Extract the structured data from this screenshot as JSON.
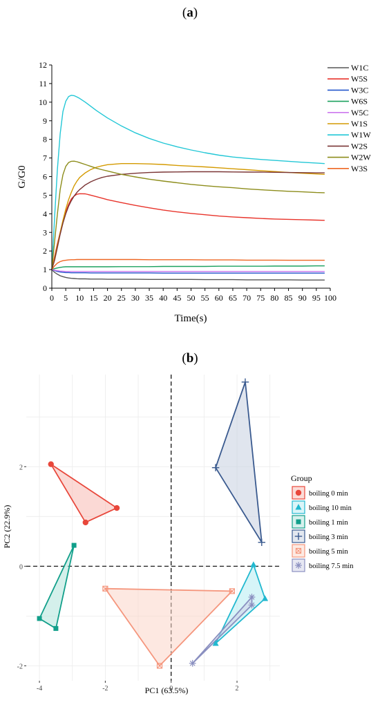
{
  "chart_data": [
    {
      "panel_label_open": "(",
      "panel_label": "a",
      "panel_label_close": ")",
      "type": "line",
      "xlabel": "Time(s)",
      "ylabel": "G/G0",
      "xlim": [
        0,
        100
      ],
      "ylim": [
        0,
        12
      ],
      "x_ticks": [
        0,
        5,
        10,
        15,
        20,
        25,
        30,
        35,
        40,
        45,
        50,
        55,
        60,
        65,
        70,
        75,
        80,
        85,
        90,
        95,
        100
      ],
      "y_ticks": [
        0,
        1,
        2,
        3,
        4,
        5,
        6,
        7,
        8,
        9,
        10,
        11,
        12
      ],
      "grid": false,
      "legend_position": "right",
      "x": [
        0,
        1,
        2,
        3,
        4,
        5,
        6,
        7,
        8,
        9,
        10,
        12,
        14,
        16,
        18,
        20,
        25,
        30,
        35,
        40,
        45,
        50,
        55,
        60,
        65,
        70,
        75,
        80,
        85,
        90,
        95,
        98
      ],
      "series": [
        {
          "name": "W1C",
          "color": "#555555",
          "values": [
            1.0,
            0.85,
            0.75,
            0.67,
            0.62,
            0.58,
            0.55,
            0.53,
            0.52,
            0.51,
            0.5,
            0.5,
            0.49,
            0.49,
            0.49,
            0.48,
            0.48,
            0.48,
            0.47,
            0.47,
            0.47,
            0.47,
            0.46,
            0.46,
            0.46,
            0.45,
            0.45,
            0.45,
            0.45,
            0.44,
            0.44,
            0.44
          ]
        },
        {
          "name": "W5S",
          "color": "#e8332a",
          "values": [
            1.0,
            1.7,
            2.4,
            3.0,
            3.6,
            4.1,
            4.5,
            4.8,
            4.95,
            5.05,
            5.08,
            5.07,
            5.0,
            4.92,
            4.84,
            4.76,
            4.6,
            4.45,
            4.32,
            4.2,
            4.1,
            4.02,
            3.95,
            3.88,
            3.83,
            3.79,
            3.75,
            3.72,
            3.7,
            3.68,
            3.66,
            3.65
          ]
        },
        {
          "name": "W3C",
          "color": "#2255cc",
          "values": [
            1.0,
            0.95,
            0.9,
            0.87,
            0.85,
            0.84,
            0.84,
            0.83,
            0.83,
            0.83,
            0.83,
            0.83,
            0.82,
            0.82,
            0.82,
            0.82,
            0.82,
            0.82,
            0.82,
            0.81,
            0.81,
            0.81,
            0.81,
            0.81,
            0.81,
            0.81,
            0.81,
            0.81,
            0.81,
            0.81,
            0.81,
            0.81
          ]
        },
        {
          "name": "W6S",
          "color": "#1aa05e",
          "values": [
            1.0,
            1.05,
            1.09,
            1.12,
            1.14,
            1.15,
            1.15,
            1.15,
            1.15,
            1.15,
            1.15,
            1.15,
            1.15,
            1.15,
            1.15,
            1.15,
            1.16,
            1.16,
            1.16,
            1.17,
            1.17,
            1.17,
            1.17,
            1.18,
            1.18,
            1.18,
            1.18,
            1.19,
            1.19,
            1.19,
            1.2,
            1.2
          ]
        },
        {
          "name": "W5C",
          "color": "#cc77ee",
          "values": [
            1.0,
            0.97,
            0.94,
            0.92,
            0.91,
            0.9,
            0.9,
            0.9,
            0.9,
            0.9,
            0.9,
            0.9,
            0.9,
            0.9,
            0.9,
            0.9,
            0.9,
            0.9,
            0.9,
            0.9,
            0.9,
            0.9,
            0.9,
            0.9,
            0.9,
            0.9,
            0.9,
            0.9,
            0.9,
            0.9,
            0.9,
            0.9
          ]
        },
        {
          "name": "W1S",
          "color": "#d49a00",
          "values": [
            1.0,
            1.6,
            2.3,
            3.0,
            3.65,
            4.25,
            4.75,
            5.15,
            5.5,
            5.75,
            5.95,
            6.2,
            6.38,
            6.5,
            6.58,
            6.64,
            6.7,
            6.7,
            6.68,
            6.65,
            6.6,
            6.56,
            6.52,
            6.47,
            6.42,
            6.37,
            6.32,
            6.27,
            6.22,
            6.18,
            6.14,
            6.12
          ]
        },
        {
          "name": "W1W",
          "color": "#22c7d6",
          "values": [
            1.0,
            3.8,
            6.4,
            8.3,
            9.5,
            10.05,
            10.3,
            10.37,
            10.35,
            10.28,
            10.2,
            10.0,
            9.78,
            9.55,
            9.35,
            9.15,
            8.72,
            8.35,
            8.05,
            7.8,
            7.6,
            7.43,
            7.28,
            7.15,
            7.05,
            6.98,
            6.92,
            6.87,
            6.82,
            6.77,
            6.73,
            6.7
          ]
        },
        {
          "name": "W2S",
          "color": "#7a3535",
          "values": [
            1.0,
            1.5,
            2.2,
            2.9,
            3.5,
            4.0,
            4.4,
            4.7,
            4.95,
            5.15,
            5.3,
            5.55,
            5.72,
            5.85,
            5.95,
            6.02,
            6.12,
            6.18,
            6.22,
            6.24,
            6.25,
            6.26,
            6.26,
            6.26,
            6.25,
            6.24,
            6.24,
            6.23,
            6.22,
            6.21,
            6.2,
            6.2
          ]
        },
        {
          "name": "W2W",
          "color": "#8c8c1a",
          "values": [
            1.0,
            2.5,
            4.0,
            5.3,
            6.1,
            6.55,
            6.75,
            6.82,
            6.83,
            6.8,
            6.75,
            6.65,
            6.55,
            6.45,
            6.37,
            6.3,
            6.12,
            5.98,
            5.86,
            5.76,
            5.67,
            5.58,
            5.51,
            5.45,
            5.4,
            5.34,
            5.29,
            5.25,
            5.21,
            5.18,
            5.14,
            5.13
          ]
        },
        {
          "name": "W3S",
          "color": "#ee6622",
          "values": [
            1.0,
            1.2,
            1.35,
            1.43,
            1.48,
            1.5,
            1.52,
            1.53,
            1.53,
            1.54,
            1.54,
            1.54,
            1.54,
            1.54,
            1.54,
            1.54,
            1.54,
            1.54,
            1.53,
            1.53,
            1.53,
            1.53,
            1.52,
            1.52,
            1.52,
            1.51,
            1.51,
            1.51,
            1.5,
            1.5,
            1.5,
            1.5
          ]
        }
      ]
    },
    {
      "panel_label_open": "(",
      "panel_label": "b",
      "panel_label_close": ")",
      "type": "scatter",
      "xlabel": "PC1 (63.5%)",
      "ylabel": "PC2 (22.9%)",
      "xlim": [
        -4.4,
        3.3
      ],
      "ylim": [
        -2.3,
        3.85
      ],
      "x_ticks": [
        -4,
        -2,
        0,
        2
      ],
      "y_ticks": [
        -2,
        0,
        2
      ],
      "grid": true,
      "grid_color": "#ebebeb",
      "reference_lines": {
        "x": 0,
        "y": 0,
        "style": "dashed"
      },
      "legend_title": "Group",
      "legend_position": "right",
      "groups": [
        {
          "name": "boiling 0 min",
          "color": "#e8473b",
          "fill": "#f7b9b2",
          "marker": "circle",
          "points": [
            [
              -3.65,
              2.05
            ],
            [
              -1.65,
              1.17
            ],
            [
              -2.6,
              0.88
            ]
          ]
        },
        {
          "name": "boiling 10 min",
          "color": "#21b8cf",
          "fill": "#b5ecf2",
          "marker": "triangle",
          "points": [
            [
              2.5,
              0.03
            ],
            [
              2.85,
              -0.65
            ],
            [
              1.35,
              -1.55
            ]
          ]
        },
        {
          "name": "boiling 1 min",
          "color": "#119f8a",
          "fill": "#b0e3db",
          "marker": "square",
          "points": [
            [
              -2.95,
              0.42
            ],
            [
              -4.0,
              -1.05
            ],
            [
              -3.5,
              -1.25
            ]
          ]
        },
        {
          "name": "boiling 3 min",
          "color": "#3a5a8f",
          "fill": "#c6d0e0",
          "marker": "plus",
          "points": [
            [
              2.25,
              3.7
            ],
            [
              1.35,
              1.98
            ],
            [
              2.75,
              0.48
            ]
          ]
        },
        {
          "name": "boiling 5 min",
          "color": "#f5967d",
          "fill": "#fbd5c8",
          "marker": "square-x",
          "points": [
            [
              -2.0,
              -0.45
            ],
            [
              1.85,
              -0.5
            ],
            [
              -0.35,
              -2.0
            ]
          ]
        },
        {
          "name": "boiling 7.5 min",
          "color": "#8a8fc0",
          "fill": "#cfd2e8",
          "marker": "asterisk",
          "points": [
            [
              2.45,
              -0.62
            ],
            [
              2.45,
              -0.78
            ],
            [
              0.65,
              -1.95
            ]
          ]
        }
      ]
    }
  ]
}
